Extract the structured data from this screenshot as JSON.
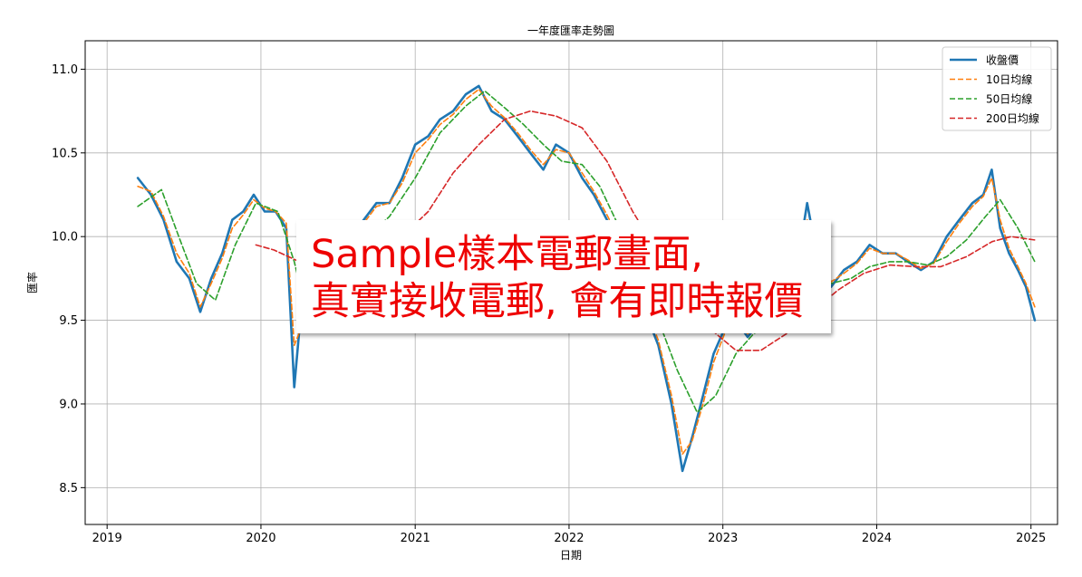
{
  "chart_data": {
    "type": "line",
    "title": "一年度匯率走勢圖",
    "xlabel": "日期",
    "ylabel": "匯率",
    "xlim": [
      "2018-11-10",
      "2025-03-05"
    ],
    "ylim": [
      8.28,
      11.17
    ],
    "x_ticks": [
      "2019",
      "2020",
      "2021",
      "2022",
      "2023",
      "2024",
      "2025"
    ],
    "y_ticks": [
      "8.5",
      "9.0",
      "9.5",
      "10.0",
      "10.5",
      "11.0"
    ],
    "grid": true,
    "legend": "top-right",
    "series": [
      {
        "name": "收盤價",
        "color": "#1f77b4",
        "style": "solid",
        "x": [
          "2019-03-15",
          "2019-04-15",
          "2019-05-15",
          "2019-06-15",
          "2019-07-15",
          "2019-08-10",
          "2019-09-05",
          "2019-10-01",
          "2019-10-25",
          "2019-11-20",
          "2019-12-15",
          "2020-01-10",
          "2020-02-05",
          "2020-03-01",
          "2020-03-20",
          "2020-04-05",
          "2020-05-01",
          "2020-06-01",
          "2020-07-01",
          "2020-08-01",
          "2020-09-01",
          "2020-10-01",
          "2020-11-01",
          "2020-12-01",
          "2021-01-01",
          "2021-02-01",
          "2021-03-01",
          "2021-04-01",
          "2021-05-01",
          "2021-06-01",
          "2021-07-01",
          "2021-08-01",
          "2021-09-01",
          "2021-10-01",
          "2021-11-01",
          "2021-12-01",
          "2022-01-01",
          "2022-02-01",
          "2022-03-01",
          "2022-04-01",
          "2022-05-01",
          "2022-06-01",
          "2022-07-01",
          "2022-08-01",
          "2022-09-01",
          "2022-09-27",
          "2022-10-20",
          "2022-11-15",
          "2022-12-10",
          "2023-01-05",
          "2023-02-01",
          "2023-03-01",
          "2023-04-01",
          "2023-05-01",
          "2023-06-01",
          "2023-07-01",
          "2023-07-20",
          "2023-08-15",
          "2023-09-15",
          "2023-10-15",
          "2023-11-15",
          "2023-12-15",
          "2024-01-15",
          "2024-02-15",
          "2024-03-15",
          "2024-04-15",
          "2024-05-15",
          "2024-06-15",
          "2024-07-15",
          "2024-08-15",
          "2024-09-10",
          "2024-09-30",
          "2024-10-20",
          "2024-11-10",
          "2024-12-01",
          "2024-12-20",
          "2025-01-10"
        ],
        "values": [
          10.35,
          10.25,
          10.1,
          9.85,
          9.75,
          9.55,
          9.75,
          9.9,
          10.1,
          10.15,
          10.25,
          10.15,
          10.15,
          10.05,
          9.1,
          9.55,
          9.65,
          9.85,
          9.95,
          10.0,
          10.1,
          10.2,
          10.2,
          10.35,
          10.55,
          10.6,
          10.7,
          10.75,
          10.85,
          10.9,
          10.75,
          10.7,
          10.6,
          10.5,
          10.4,
          10.55,
          10.5,
          10.35,
          10.25,
          10.1,
          9.95,
          9.75,
          9.55,
          9.35,
          9.0,
          8.6,
          8.8,
          9.05,
          9.3,
          9.45,
          9.5,
          9.4,
          9.5,
          9.6,
          9.65,
          9.9,
          10.2,
          9.85,
          9.7,
          9.8,
          9.85,
          9.95,
          9.9,
          9.9,
          9.85,
          9.8,
          9.85,
          10.0,
          10.1,
          10.2,
          10.25,
          10.4,
          10.05,
          9.9,
          9.8,
          9.7,
          9.5
        ]
      },
      {
        "name": "10日均線",
        "color": "#ff7f0e",
        "style": "dashed",
        "x": [
          "2019-03-15",
          "2019-04-15",
          "2019-05-15",
          "2019-06-15",
          "2019-07-15",
          "2019-08-10",
          "2019-09-05",
          "2019-10-01",
          "2019-10-25",
          "2019-11-20",
          "2019-12-15",
          "2020-01-10",
          "2020-02-05",
          "2020-03-01",
          "2020-03-20",
          "2020-04-05",
          "2020-05-01",
          "2020-06-01",
          "2020-07-01",
          "2020-08-01",
          "2020-09-01",
          "2020-10-01",
          "2020-11-01",
          "2020-12-01",
          "2021-01-01",
          "2021-02-01",
          "2021-03-01",
          "2021-04-01",
          "2021-05-01",
          "2021-06-01",
          "2021-07-01",
          "2021-08-01",
          "2021-09-01",
          "2021-10-01",
          "2021-11-01",
          "2021-12-01",
          "2022-01-01",
          "2022-02-01",
          "2022-03-01",
          "2022-04-01",
          "2022-05-01",
          "2022-06-01",
          "2022-07-01",
          "2022-08-01",
          "2022-09-01",
          "2022-09-27",
          "2022-10-20",
          "2022-11-15",
          "2022-12-10",
          "2023-01-05",
          "2023-02-01",
          "2023-03-01",
          "2023-04-01",
          "2023-05-01",
          "2023-06-01",
          "2023-07-01",
          "2023-07-20",
          "2023-08-15",
          "2023-09-15",
          "2023-10-15",
          "2023-11-15",
          "2023-12-15",
          "2024-01-15",
          "2024-02-15",
          "2024-03-15",
          "2024-04-15",
          "2024-05-15",
          "2024-06-15",
          "2024-07-15",
          "2024-08-15",
          "2024-09-10",
          "2024-09-30",
          "2024-10-20",
          "2024-11-10",
          "2024-12-01",
          "2024-12-20",
          "2025-01-10"
        ],
        "values": [
          10.3,
          10.27,
          10.12,
          9.9,
          9.78,
          9.58,
          9.72,
          9.87,
          10.05,
          10.13,
          10.22,
          10.17,
          10.15,
          10.08,
          9.35,
          9.45,
          9.62,
          9.82,
          9.93,
          9.99,
          10.08,
          10.18,
          10.2,
          10.32,
          10.5,
          10.58,
          10.67,
          10.73,
          10.82,
          10.88,
          10.78,
          10.71,
          10.62,
          10.52,
          10.43,
          10.52,
          10.5,
          10.38,
          10.27,
          10.13,
          9.98,
          9.78,
          9.58,
          9.38,
          9.05,
          8.7,
          8.78,
          9.0,
          9.25,
          9.42,
          9.48,
          9.42,
          9.48,
          9.58,
          9.63,
          9.85,
          10.1,
          9.9,
          9.73,
          9.78,
          9.84,
          9.93,
          9.9,
          9.9,
          9.86,
          9.81,
          9.84,
          9.97,
          10.08,
          10.18,
          10.24,
          10.35,
          10.1,
          9.93,
          9.82,
          9.72,
          9.58
        ]
      },
      {
        "name": "50日均線",
        "color": "#2ca02c",
        "style": "dashed",
        "x": [
          "2019-03-15",
          "2019-05-10",
          "2019-06-20",
          "2019-08-01",
          "2019-09-15",
          "2019-11-01",
          "2019-12-20",
          "2020-02-10",
          "2020-03-20",
          "2020-04-15",
          "2020-05-20",
          "2020-07-01",
          "2020-09-01",
          "2020-11-01",
          "2021-01-01",
          "2021-03-01",
          "2021-05-01",
          "2021-06-15",
          "2021-08-01",
          "2021-09-15",
          "2021-11-01",
          "2021-12-15",
          "2022-02-01",
          "2022-03-15",
          "2022-05-01",
          "2022-06-15",
          "2022-08-01",
          "2022-09-15",
          "2022-11-01",
          "2022-12-15",
          "2023-02-01",
          "2023-03-15",
          "2023-05-01",
          "2023-06-15",
          "2023-08-01",
          "2023-09-15",
          "2023-11-01",
          "2023-12-15",
          "2024-02-01",
          "2024-03-15",
          "2024-05-01",
          "2024-06-15",
          "2024-08-01",
          "2024-09-15",
          "2024-10-20",
          "2024-12-01",
          "2025-01-10"
        ],
        "values": [
          10.18,
          10.28,
          10.0,
          9.72,
          9.62,
          9.95,
          10.2,
          10.15,
          9.85,
          9.58,
          9.62,
          9.8,
          9.98,
          10.12,
          10.35,
          10.62,
          10.78,
          10.87,
          10.77,
          10.67,
          10.55,
          10.45,
          10.43,
          10.3,
          10.05,
          9.8,
          9.5,
          9.2,
          8.95,
          9.05,
          9.3,
          9.42,
          9.48,
          9.52,
          9.65,
          9.72,
          9.75,
          9.82,
          9.85,
          9.85,
          9.83,
          9.88,
          9.98,
          10.12,
          10.22,
          10.05,
          9.85
        ]
      },
      {
        "name": "200日均線",
        "color": "#d62728",
        "style": "dashed",
        "x": [
          "2019-12-20",
          "2020-02-01",
          "2020-04-01",
          "2020-06-01",
          "2020-08-01",
          "2020-10-01",
          "2020-12-01",
          "2021-02-01",
          "2021-04-01",
          "2021-06-01",
          "2021-08-01",
          "2021-10-01",
          "2021-12-01",
          "2022-02-01",
          "2022-04-01",
          "2022-06-01",
          "2022-08-01",
          "2022-10-01",
          "2022-12-01",
          "2023-02-01",
          "2023-04-01",
          "2023-06-01",
          "2023-08-01",
          "2023-10-01",
          "2023-12-01",
          "2024-02-01",
          "2024-04-01",
          "2024-06-01",
          "2024-08-01",
          "2024-10-01",
          "2024-11-15",
          "2025-01-10"
        ],
        "values": [
          9.95,
          9.92,
          9.85,
          9.82,
          9.85,
          9.9,
          10.0,
          10.15,
          10.38,
          10.55,
          10.7,
          10.75,
          10.72,
          10.65,
          10.45,
          10.15,
          9.9,
          9.65,
          9.45,
          9.32,
          9.32,
          9.42,
          9.55,
          9.68,
          9.78,
          9.83,
          9.82,
          9.82,
          9.88,
          9.97,
          10.0,
          9.98
        ]
      }
    ]
  },
  "overlay": {
    "line1": "Sample樣本電郵畫面,",
    "line2": "真實接收電郵,  會有即時報價"
  }
}
